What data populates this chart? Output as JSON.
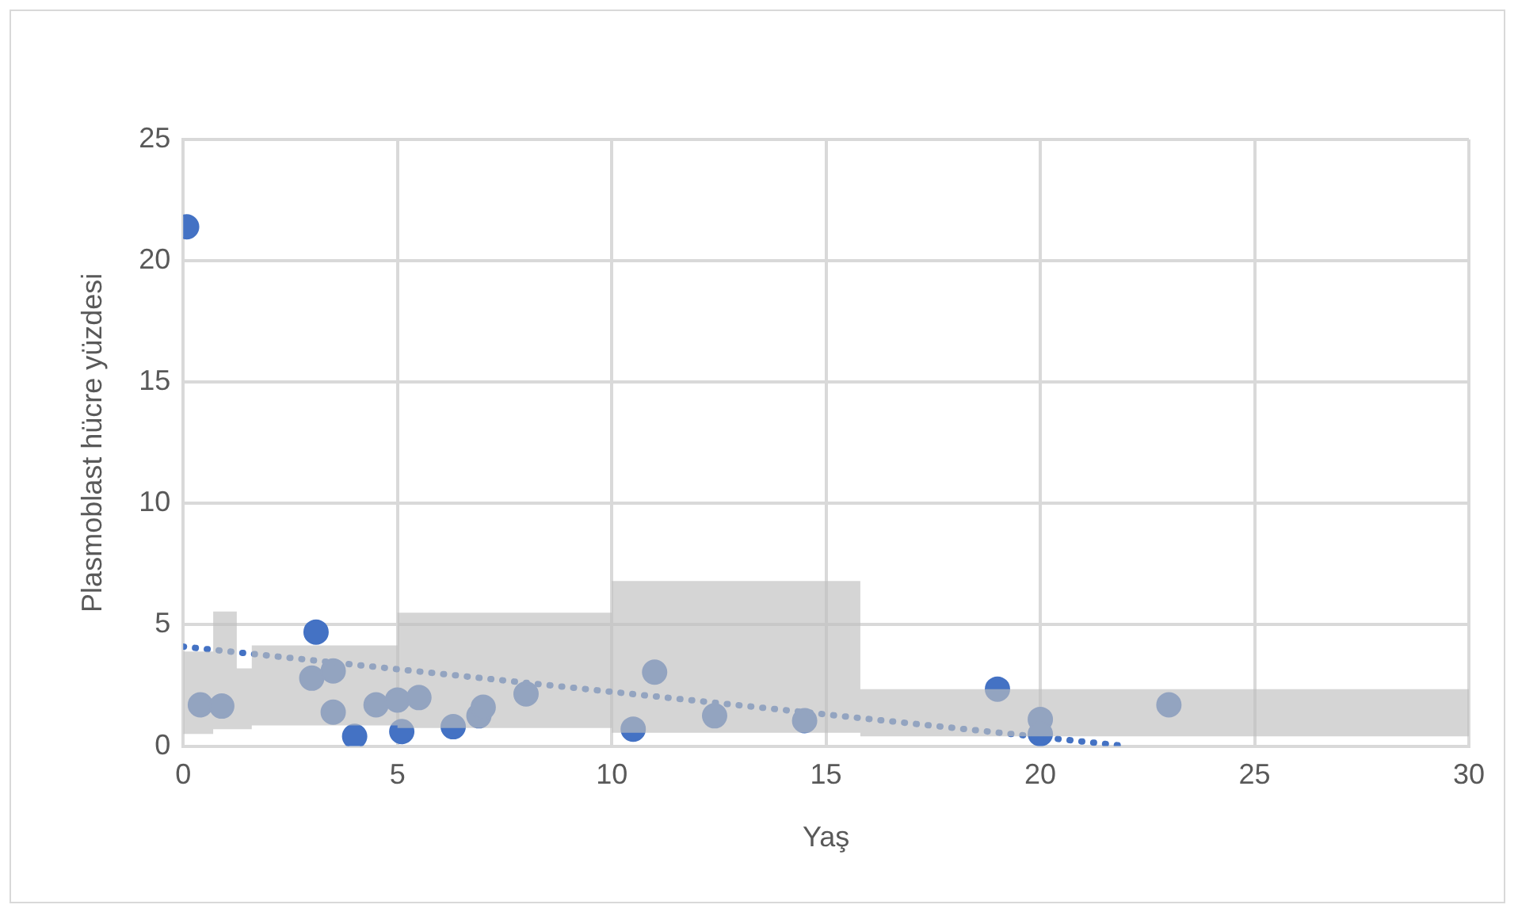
{
  "chart_data": {
    "type": "scatter",
    "xlabel": "Yaş",
    "ylabel": "Plasmoblast hücre yüzdesi",
    "xlim": [
      0,
      30
    ],
    "xticks": [
      0,
      5,
      10,
      15,
      20,
      25,
      30
    ],
    "ylim": [
      0,
      25
    ],
    "yticks": [
      0,
      5,
      10,
      15,
      20,
      25
    ],
    "grid": true,
    "legend": false,
    "marker": "circle",
    "series": [
      {
        "color": "#4472c4",
        "x": [
          0.08,
          0.4,
          0.9,
          3.1,
          3.0,
          3.5,
          3.5,
          4.0,
          4.5,
          5.0,
          5.1,
          5.5,
          6.3,
          6.9,
          7.0,
          8.0,
          10.5,
          11.0,
          12.4,
          14.5,
          19.0,
          20.0,
          20.0,
          23.0
        ],
        "values": [
          21.4,
          1.7,
          1.65,
          4.7,
          2.8,
          3.1,
          1.4,
          0.4,
          1.7,
          1.9,
          0.6,
          2.0,
          0.8,
          1.25,
          1.6,
          2.15,
          0.7,
          3.05,
          1.25,
          1.05,
          2.35,
          1.1,
          0.5,
          1.7
        ]
      },
      {
        "type": "line",
        "color": "#4472c4",
        "line_style": "dotted",
        "marker": "none",
        "x": [
          0,
          22
        ],
        "values": [
          4.1,
          0
        ]
      },
      {
        "type": "step",
        "color": "#bfbfbf",
        "x": [
          0,
          0.7,
          1.25,
          1.6,
          5,
          10,
          15.8,
          30
        ],
        "values": [
          null,
          null,
          null,
          null,
          null,
          null,
          null,
          null
        ],
        "lower": [
          0.5,
          0.7,
          0.7,
          0.85,
          0.75,
          0.55,
          0.4,
          0.4
        ],
        "upper": [
          3.9,
          5.55,
          3.2,
          4.15,
          5.5,
          6.8,
          2.35,
          2.35
        ]
      }
    ]
  }
}
